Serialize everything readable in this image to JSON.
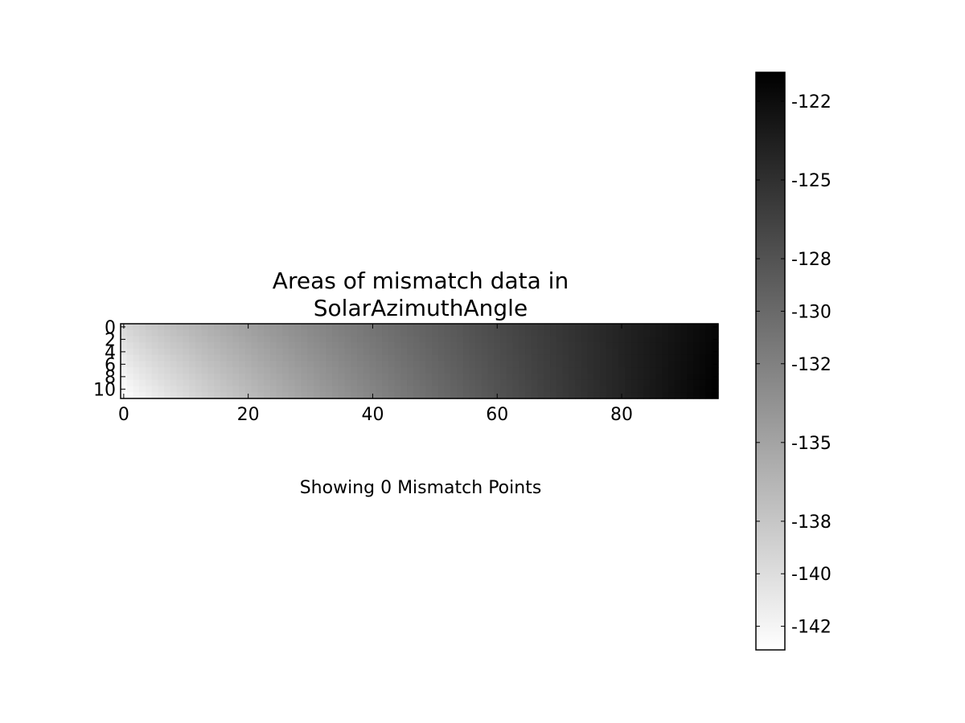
{
  "chart_data": {
    "type": "heatmap",
    "title_lines": [
      "Areas of mismatch data in",
      "SolarAzimuthAngle"
    ],
    "caption": "Showing 0 Mismatch Points",
    "colormap": "gray_r",
    "colormap_low_color": "#ffffff",
    "colormap_high_color": "#000000",
    "x_ticks": [
      0,
      20,
      40,
      60,
      80
    ],
    "x_range": [
      -0.5,
      95.5
    ],
    "y_ticks": [
      0,
      2,
      4,
      6,
      8,
      10
    ],
    "y_range": [
      -0.5,
      11.5
    ],
    "y_inverted": true,
    "value_range": [
      -142.9,
      -120.9
    ],
    "corner_values": {
      "top_left": -139.5,
      "top_right": -121.5,
      "bottom_left": -142.9,
      "bottom_right": -121.0
    },
    "colorbar": {
      "ticks": [
        -122,
        -125,
        -128,
        -130,
        -132,
        -135,
        -138,
        -140,
        -142
      ],
      "range": [
        -142.9,
        -120.9
      ]
    }
  }
}
